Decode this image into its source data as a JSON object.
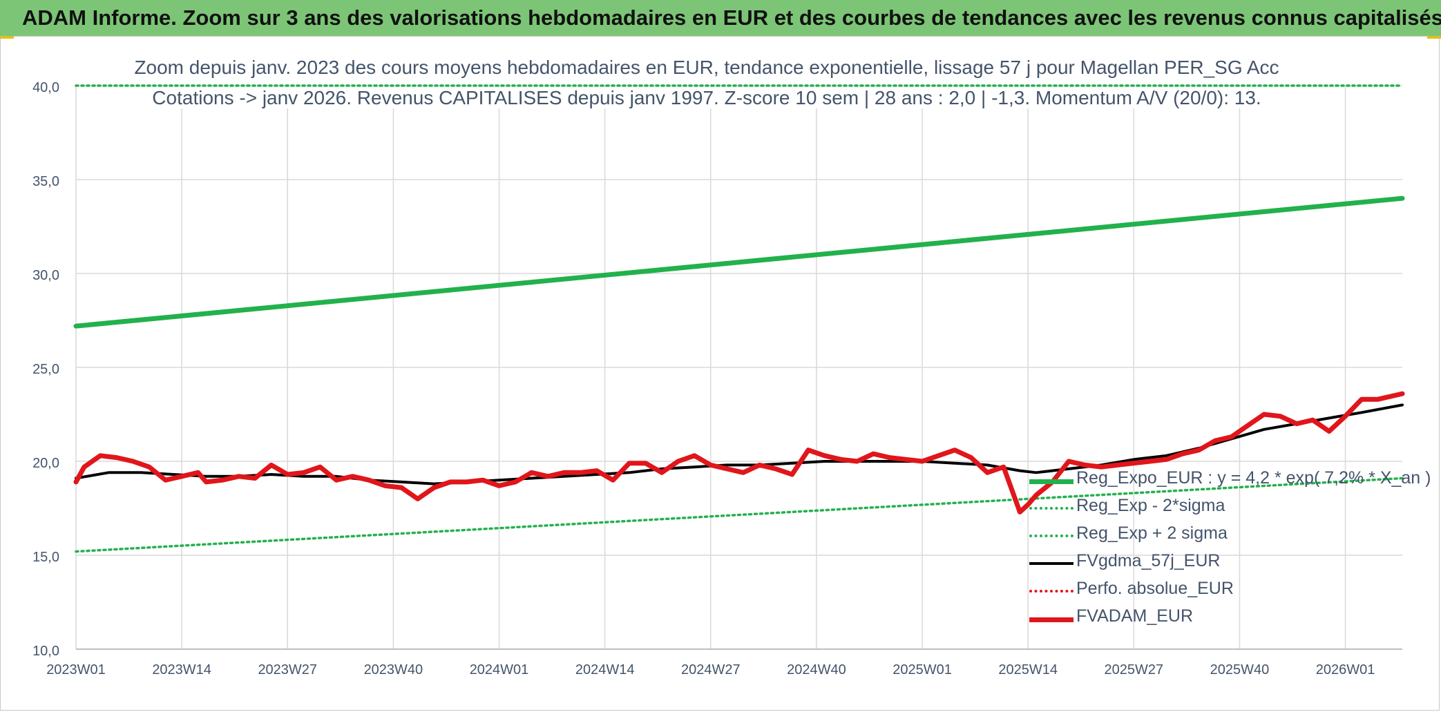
{
  "page_title": "ADAM Informe. Zoom sur 3 ans des valorisations hebdomadaires en EUR et des courbes de tendances avec les revenus connus capitalisés",
  "chart_data": {
    "type": "line",
    "title": "Zoom depuis janv. 2023 des cours moyens hebdomadaires en EUR, tendance exponentielle, lissage 57 j pour Magellan PER_SG Acc",
    "subtitle": "Cotations -> janv 2026. Revenus CAPITALISES depuis janv 1997. Z-score 10 sem | 28 ans : 2,0 | -1,3. Momentum A/V (20/0): 13.",
    "xlabel": "",
    "ylabel": "",
    "ylim": [
      10,
      40
    ],
    "xlim": [
      0,
      163
    ],
    "grid": true,
    "legend_position": "bottom-right",
    "y_ticks": [
      "10,0",
      "15,0",
      "20,0",
      "25,0",
      "30,0",
      "35,0",
      "40,0"
    ],
    "y_tick_values": [
      10,
      15,
      20,
      25,
      30,
      35,
      40
    ],
    "x_ticks": [
      "2023W01",
      "2023W14",
      "2023W27",
      "2023W40",
      "2024W01",
      "2024W14",
      "2024W27",
      "2024W40",
      "2025W01",
      "2025W14",
      "2025W27",
      "2025W40",
      "2026W01"
    ],
    "x_tick_positions": [
      0,
      13,
      26,
      39,
      52,
      65,
      78,
      91,
      104,
      117,
      130,
      143,
      156
    ],
    "series": [
      {
        "name": "Reg_Expo_EUR : y = 4,2 * exp( 7,2% * X_an )",
        "color": "#22b14c",
        "style": "solid-thick",
        "x": [
          0,
          163
        ],
        "values": [
          27.2,
          34.0
        ]
      },
      {
        "name": "Reg_Exp - 2*sigma",
        "color": "#22b14c",
        "style": "dotted",
        "x": [
          0,
          163
        ],
        "values": [
          15.2,
          19.1
        ]
      },
      {
        "name": "Reg_Exp + 2 sigma",
        "color": "#22b14c",
        "style": "dotted",
        "x": [
          0,
          163
        ],
        "values": [
          40.0,
          40.0
        ]
      },
      {
        "name": "FVgdma_57j_EUR",
        "color": "#000000",
        "style": "solid",
        "x": [
          0,
          4,
          8,
          12,
          16,
          20,
          24,
          28,
          32,
          36,
          40,
          44,
          48,
          52,
          56,
          60,
          64,
          68,
          72,
          76,
          80,
          84,
          88,
          92,
          96,
          100,
          104,
          108,
          112,
          116,
          118,
          122,
          126,
          130,
          134,
          138,
          142,
          146,
          150,
          154,
          158,
          163
        ],
        "values": [
          19.1,
          19.4,
          19.4,
          19.3,
          19.2,
          19.2,
          19.3,
          19.2,
          19.2,
          19.0,
          18.9,
          18.8,
          18.9,
          19.0,
          19.1,
          19.2,
          19.3,
          19.4,
          19.6,
          19.7,
          19.8,
          19.8,
          19.9,
          20.0,
          20.0,
          20.0,
          20.0,
          19.9,
          19.8,
          19.5,
          19.4,
          19.6,
          19.8,
          20.1,
          20.3,
          20.7,
          21.2,
          21.7,
          22.0,
          22.3,
          22.6,
          23.0
        ]
      },
      {
        "name": "Perfo. absolue_EUR",
        "color": "#e0161b",
        "style": "dotted",
        "x": [],
        "values": []
      },
      {
        "name": "FVADAM_EUR",
        "color": "#e0161b",
        "style": "solid-thick",
        "x": [
          0,
          1,
          3,
          5,
          7,
          9,
          11,
          13,
          15,
          16,
          18,
          20,
          22,
          24,
          26,
          28,
          30,
          32,
          34,
          36,
          38,
          40,
          42,
          44,
          46,
          48,
          50,
          52,
          54,
          56,
          58,
          60,
          62,
          64,
          66,
          68,
          70,
          72,
          74,
          76,
          78,
          80,
          82,
          84,
          86,
          88,
          90,
          92,
          94,
          96,
          98,
          100,
          102,
          104,
          106,
          108,
          110,
          112,
          114,
          116,
          117,
          118,
          120,
          122,
          124,
          126,
          128,
          130,
          132,
          134,
          136,
          138,
          140,
          142,
          144,
          146,
          148,
          150,
          152,
          154,
          156,
          158,
          160,
          163
        ],
        "values": [
          18.9,
          19.7,
          20.3,
          20.2,
          20.0,
          19.7,
          19.0,
          19.2,
          19.4,
          18.9,
          19.0,
          19.2,
          19.1,
          19.8,
          19.3,
          19.4,
          19.7,
          19.0,
          19.2,
          19.0,
          18.7,
          18.6,
          18.0,
          18.6,
          18.9,
          18.9,
          19.0,
          18.7,
          18.9,
          19.4,
          19.2,
          19.4,
          19.4,
          19.5,
          19.0,
          19.9,
          19.9,
          19.4,
          20.0,
          20.3,
          19.8,
          19.6,
          19.4,
          19.8,
          19.6,
          19.3,
          20.6,
          20.3,
          20.1,
          20.0,
          20.4,
          20.2,
          20.1,
          20.0,
          20.3,
          20.6,
          20.2,
          19.4,
          19.7,
          17.3,
          17.7,
          18.2,
          18.9,
          20.0,
          19.8,
          19.7,
          19.8,
          19.9,
          20.0,
          20.1,
          20.4,
          20.6,
          21.1,
          21.3,
          21.9,
          22.5,
          22.4,
          22.0,
          22.2,
          21.6,
          22.4,
          23.3,
          23.3,
          23.6
        ]
      }
    ]
  }
}
